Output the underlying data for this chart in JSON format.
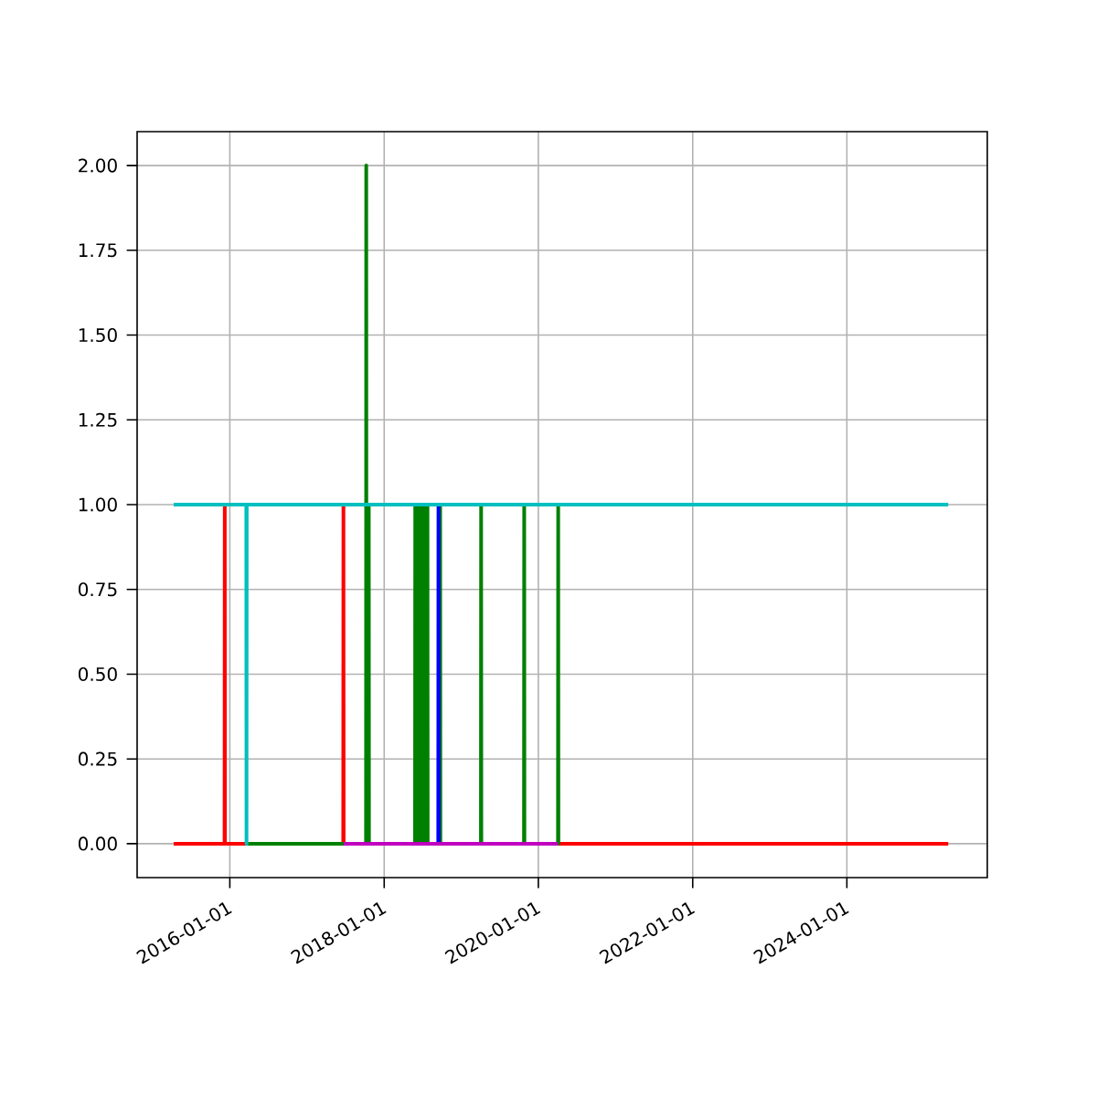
{
  "chart_data": {
    "type": "line",
    "xlim": [
      "2014-10-19",
      "2025-10-27"
    ],
    "xticks": [
      "2016-01-01",
      "2018-01-01",
      "2020-01-01",
      "2022-01-01",
      "2024-01-01"
    ],
    "ylim": [
      -0.1,
      2.1
    ],
    "yticks": [
      {
        "value": 0,
        "label": "0.00"
      },
      {
        "value": 0.25,
        "label": "0.25"
      },
      {
        "value": 0.5,
        "label": "0.50"
      },
      {
        "value": 0.75,
        "label": "0.75"
      },
      {
        "value": 1,
        "label": "1.00"
      },
      {
        "value": 1.25,
        "label": "1.25"
      },
      {
        "value": 1.5,
        "label": "1.50"
      },
      {
        "value": 1.75,
        "label": "1.75"
      },
      {
        "value": 2,
        "label": "2.00"
      }
    ],
    "grid": true,
    "series": [
      {
        "color": "#ff0000",
        "x": [
          "2015-04-10",
          "2015-12-07",
          "2015-12-08",
          "2015-12-09",
          "2017-06-21",
          "2017-06-22",
          "2017-06-23",
          "2025-04-25"
        ],
        "values": [
          0,
          0,
          1,
          0,
          0,
          1,
          0,
          0
        ]
      },
      {
        "color": "#008000",
        "x": [
          "2016-03-20",
          "2017-10-07",
          "2017-10-08",
          "2017-10-09",
          "2017-10-19",
          "2017-10-20",
          "2017-10-21",
          "2018-05-27",
          "2018-05-28",
          "2018-05-29",
          "2018-06-09",
          "2018-06-10",
          "2018-06-11",
          "2018-06-24",
          "2018-06-25",
          "2018-06-26",
          "2018-07-09",
          "2018-07-10",
          "2018-07-11",
          "2018-07-24",
          "2018-07-25",
          "2018-07-26",
          "2018-09-22",
          "2018-09-23",
          "2018-09-24",
          "2019-04-04",
          "2019-04-05",
          "2019-04-06",
          "2019-10-25",
          "2019-10-26",
          "2019-10-27",
          "2020-04-03",
          "2020-04-04",
          "2020-04-05"
        ],
        "values": [
          0,
          0,
          2,
          0,
          0,
          1,
          0,
          0,
          1,
          0,
          0,
          1,
          0,
          0,
          1,
          0,
          0,
          1,
          0,
          0,
          1,
          0,
          0,
          1,
          0,
          0,
          1,
          0,
          0,
          1,
          0,
          0,
          1,
          0
        ]
      },
      {
        "color": "#0000ff",
        "x": [
          "2018-09-14",
          "2018-09-15",
          "2018-09-16"
        ],
        "values": [
          0,
          1,
          0
        ]
      },
      {
        "color": "#bf00bf",
        "x": [
          "2017-06-23",
          "2020-04-03"
        ],
        "values": [
          0,
          0
        ]
      },
      {
        "color": "#00bfbf",
        "x": [
          "2015-04-10",
          "2016-03-19",
          "2016-03-20",
          "2016-03-21",
          "2025-04-25"
        ],
        "values": [
          1,
          1,
          0,
          1,
          1
        ]
      }
    ]
  }
}
